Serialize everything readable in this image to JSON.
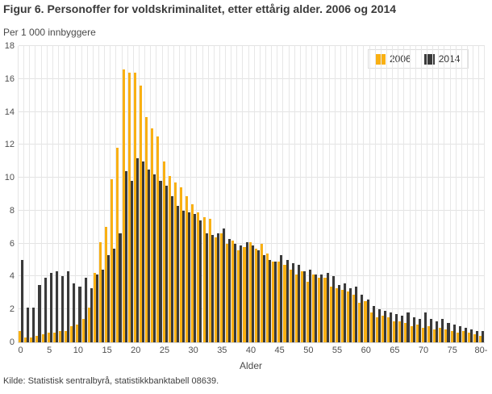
{
  "figure": {
    "title": "Figur 6. Personoffer for voldskriminalitet, etter ettårig alder. 2006 og 2014",
    "unit_label": "Per 1 000 innbyggere",
    "axis_title": "Alder",
    "source": "Kilde: Statistisk sentralbyrå, statistikkbanktabell 08639."
  },
  "legend": {
    "items": [
      {
        "label": "2006",
        "color": "#f9b013"
      },
      {
        "label": "2014",
        "color": "#3a3a3a"
      }
    ]
  },
  "chart_data": {
    "type": "bar",
    "title": "Figur 6. Personoffer for voldskriminalitet, etter ettårig alder. 2006 og 2014",
    "xlabel": "Alder",
    "ylabel": "Per 1 000 innbyggere",
    "ylim": [
      0,
      18
    ],
    "y_ticks": [
      0,
      2,
      4,
      6,
      8,
      10,
      12,
      14,
      16,
      18
    ],
    "x_tick_step": 5,
    "x_tick_labels": [
      "0",
      "5",
      "10",
      "15",
      "20",
      "25",
      "30",
      "35",
      "40",
      "45",
      "50",
      "55",
      "60",
      "65",
      "70",
      "75",
      "80-"
    ],
    "grid": "horizontal lines and per-category vertical lines",
    "legend_position": "top-right",
    "categories": [
      "0",
      "1",
      "2",
      "3",
      "4",
      "5",
      "6",
      "7",
      "8",
      "9",
      "10",
      "11",
      "12",
      "13",
      "14",
      "15",
      "16",
      "17",
      "18",
      "19",
      "20",
      "21",
      "22",
      "23",
      "24",
      "25",
      "26",
      "27",
      "28",
      "29",
      "30",
      "31",
      "32",
      "33",
      "34",
      "35",
      "36",
      "37",
      "38",
      "39",
      "40",
      "41",
      "42",
      "43",
      "44",
      "45",
      "46",
      "47",
      "48",
      "49",
      "50",
      "51",
      "52",
      "53",
      "54",
      "55",
      "56",
      "57",
      "58",
      "59",
      "60",
      "61",
      "62",
      "63",
      "64",
      "65",
      "66",
      "67",
      "68",
      "69",
      "70",
      "71",
      "72",
      "73",
      "74",
      "75",
      "76",
      "77",
      "78",
      "79",
      "80-"
    ],
    "series": [
      {
        "name": "2006",
        "color": "#f9b013",
        "values": [
          0.7,
          0.3,
          0.3,
          0.4,
          0.5,
          0.6,
          0.6,
          0.7,
          0.7,
          1.0,
          1.1,
          1.4,
          2.1,
          4.2,
          6.1,
          7.0,
          9.9,
          11.8,
          16.6,
          16.4,
          16.4,
          15.6,
          13.7,
          13.0,
          12.5,
          11.0,
          10.1,
          9.7,
          9.4,
          8.9,
          8.4,
          7.9,
          7.6,
          7.5,
          6.4,
          6.6,
          6.0,
          6.2,
          5.6,
          5.8,
          6.1,
          5.7,
          6.0,
          5.4,
          4.9,
          4.9,
          4.7,
          4.4,
          4.1,
          4.3,
          3.7,
          4.1,
          3.9,
          3.9,
          3.4,
          3.3,
          3.2,
          3.1,
          2.9,
          2.4,
          2.5,
          1.8,
          1.5,
          1.6,
          1.5,
          1.3,
          1.3,
          1.2,
          1.0,
          1.1,
          0.9,
          1.0,
          0.8,
          0.9,
          0.8,
          0.7,
          0.6,
          0.7,
          0.6,
          0.5,
          0.4
        ]
      },
      {
        "name": "2014",
        "color": "#3a3a3a",
        "values": [
          5.0,
          2.1,
          2.1,
          3.5,
          3.9,
          4.2,
          4.3,
          4.0,
          4.3,
          3.6,
          3.4,
          3.9,
          3.3,
          4.1,
          4.4,
          5.3,
          5.7,
          6.6,
          10.4,
          9.8,
          11.2,
          11.0,
          10.5,
          10.2,
          9.8,
          9.5,
          8.9,
          8.3,
          8.0,
          7.9,
          7.8,
          7.4,
          6.6,
          6.5,
          6.6,
          6.9,
          6.3,
          6.0,
          5.9,
          6.1,
          5.9,
          5.6,
          5.3,
          5.0,
          4.9,
          5.3,
          5.0,
          4.8,
          4.7,
          4.3,
          4.4,
          4.1,
          4.1,
          4.2,
          4.0,
          3.5,
          3.6,
          3.3,
          3.4,
          2.9,
          2.6,
          2.2,
          2.0,
          1.9,
          1.8,
          1.7,
          1.6,
          1.8,
          1.5,
          1.4,
          1.8,
          1.4,
          1.3,
          1.4,
          1.2,
          1.1,
          1.0,
          0.9,
          0.8,
          0.7,
          0.7
        ]
      }
    ]
  }
}
